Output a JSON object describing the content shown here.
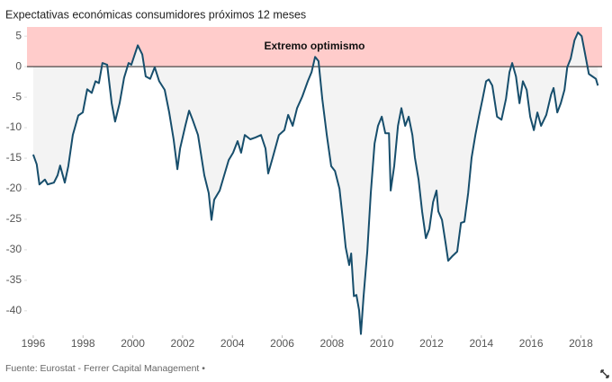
{
  "chart_data": {
    "type": "line",
    "title": "Expectativas económicas consumidores próximos 12 meses",
    "source": "Fuente: Eurostat - Ferrer Capital Management •",
    "shaded_band": {
      "label": "Extremo optimismo",
      "ymin": 0,
      "color": "#ffcccb"
    },
    "area_color": "#f3f3f3",
    "grid": false,
    "xlim": [
      1995.75,
      2018.85
    ],
    "xticks": [
      1996,
      1998,
      2000,
      2002,
      2004,
      2006,
      2008,
      2010,
      2012,
      2014,
      2016,
      2018
    ],
    "ylim": [
      -44,
      6.5
    ],
    "yticks": [
      5,
      0,
      -5,
      -10,
      -15,
      -20,
      -25,
      -30,
      -35,
      -40
    ],
    "series": [
      {
        "color": "#174e6c",
        "x": [
          1996,
          1996.14,
          1996.25,
          1996.47,
          1996.58,
          1996.83,
          1996.98,
          1997.08,
          1997.27,
          1997.41,
          1997.59,
          1997.81,
          1997.99,
          1998.17,
          1998.35,
          1998.5,
          1998.64,
          1998.78,
          1998.97,
          1999.15,
          1999.29,
          1999.47,
          1999.65,
          1999.83,
          1999.94,
          2000.2,
          2000.38,
          2000.52,
          2000.7,
          2000.88,
          2001.06,
          2001.28,
          2001.46,
          2001.64,
          2001.79,
          2001.9,
          2002.11,
          2002.26,
          2002.4,
          2002.62,
          2002.87,
          2003.05,
          2003.16,
          2003.27,
          2003.49,
          2003.67,
          2003.85,
          2004.03,
          2004.21,
          2004.35,
          2004.5,
          2004.72,
          2004.93,
          2005.15,
          2005.33,
          2005.44,
          2005.62,
          2005.87,
          2006.09,
          2006.24,
          2006.42,
          2006.6,
          2006.81,
          2007.03,
          2007.18,
          2007.32,
          2007.46,
          2007.61,
          2007.79,
          2007.97,
          2008.12,
          2008.3,
          2008.44,
          2008.55,
          2008.69,
          2008.77,
          2008.88,
          2008.98,
          2009.09,
          2009.16,
          2009.27,
          2009.42,
          2009.56,
          2009.71,
          2009.85,
          2010,
          2010.14,
          2010.29,
          2010.36,
          2010.5,
          2010.65,
          2010.79,
          2010.94,
          2011.08,
          2011.23,
          2011.33,
          2011.48,
          2011.62,
          2011.77,
          2011.91,
          2012.06,
          2012.2,
          2012.27,
          2012.42,
          2012.56,
          2012.67,
          2012.82,
          2013.03,
          2013.18,
          2013.32,
          2013.47,
          2013.61,
          2013.76,
          2013.9,
          2014.05,
          2014.19,
          2014.3,
          2014.44,
          2014.63,
          2014.81,
          2014.99,
          2015.13,
          2015.24,
          2015.39,
          2015.53,
          2015.67,
          2015.82,
          2015.96,
          2016.11,
          2016.25,
          2016.4,
          2016.61,
          2016.8,
          2016.9,
          2017.05,
          2017.19,
          2017.34,
          2017.45,
          2017.59,
          2017.74,
          2017.88,
          2018.03,
          2018.17,
          2018.32,
          2018.46,
          2018.6,
          2018.68
        ],
        "values": [
          -14.4,
          -16,
          -19.3,
          -18.5,
          -19.3,
          -19,
          -17.8,
          -16.2,
          -19,
          -16.3,
          -11.2,
          -8,
          -7.5,
          -3.7,
          -4.3,
          -2.4,
          -2.7,
          0.6,
          0.3,
          -6,
          -9,
          -6,
          -1.8,
          0.6,
          0.3,
          3.5,
          2,
          -1.6,
          -2,
          -0.1,
          -2.4,
          -3.8,
          -7.5,
          -11.9,
          -16.8,
          -13.4,
          -9.7,
          -7.2,
          -8.7,
          -11.2,
          -17.8,
          -20.7,
          -25.1,
          -21.8,
          -20.3,
          -17.8,
          -15.3,
          -14.1,
          -12.2,
          -14.1,
          -11.2,
          -11.9,
          -11.6,
          -11.2,
          -13.4,
          -17.5,
          -14.9,
          -11.2,
          -10.4,
          -7.9,
          -9.7,
          -6.8,
          -4.9,
          -2.4,
          -0.9,
          1.6,
          0.9,
          -5.3,
          -11.2,
          -16.3,
          -17.1,
          -20,
          -25.1,
          -29.6,
          -32.5,
          -30.6,
          -37.6,
          -37.4,
          -39.9,
          -43.8,
          -37.6,
          -30.3,
          -20.7,
          -12.6,
          -9.7,
          -8.2,
          -10.9,
          -10.9,
          -20.3,
          -16.3,
          -9.7,
          -6.8,
          -9.7,
          -8.2,
          -11.2,
          -14.9,
          -18.5,
          -23.7,
          -28.1,
          -26.6,
          -22.2,
          -20.3,
          -23.7,
          -25.1,
          -28.8,
          -31.8,
          -31.1,
          -30.3,
          -25.6,
          -25.4,
          -20.7,
          -14.9,
          -11.2,
          -8.2,
          -5.3,
          -2.4,
          -2.1,
          -3.1,
          -8.2,
          -8.7,
          -5.3,
          -0.9,
          0.6,
          -1.6,
          -6,
          -2.4,
          -3.8,
          -8.2,
          -10.4,
          -7.5,
          -9.7,
          -7.9,
          -4.6,
          -3.5,
          -7.5,
          -6,
          -3.8,
          -0.1,
          1.3,
          4.3,
          5.6,
          5,
          2,
          -1.2,
          -1.6,
          -2,
          -3.1
        ]
      }
    ]
  }
}
